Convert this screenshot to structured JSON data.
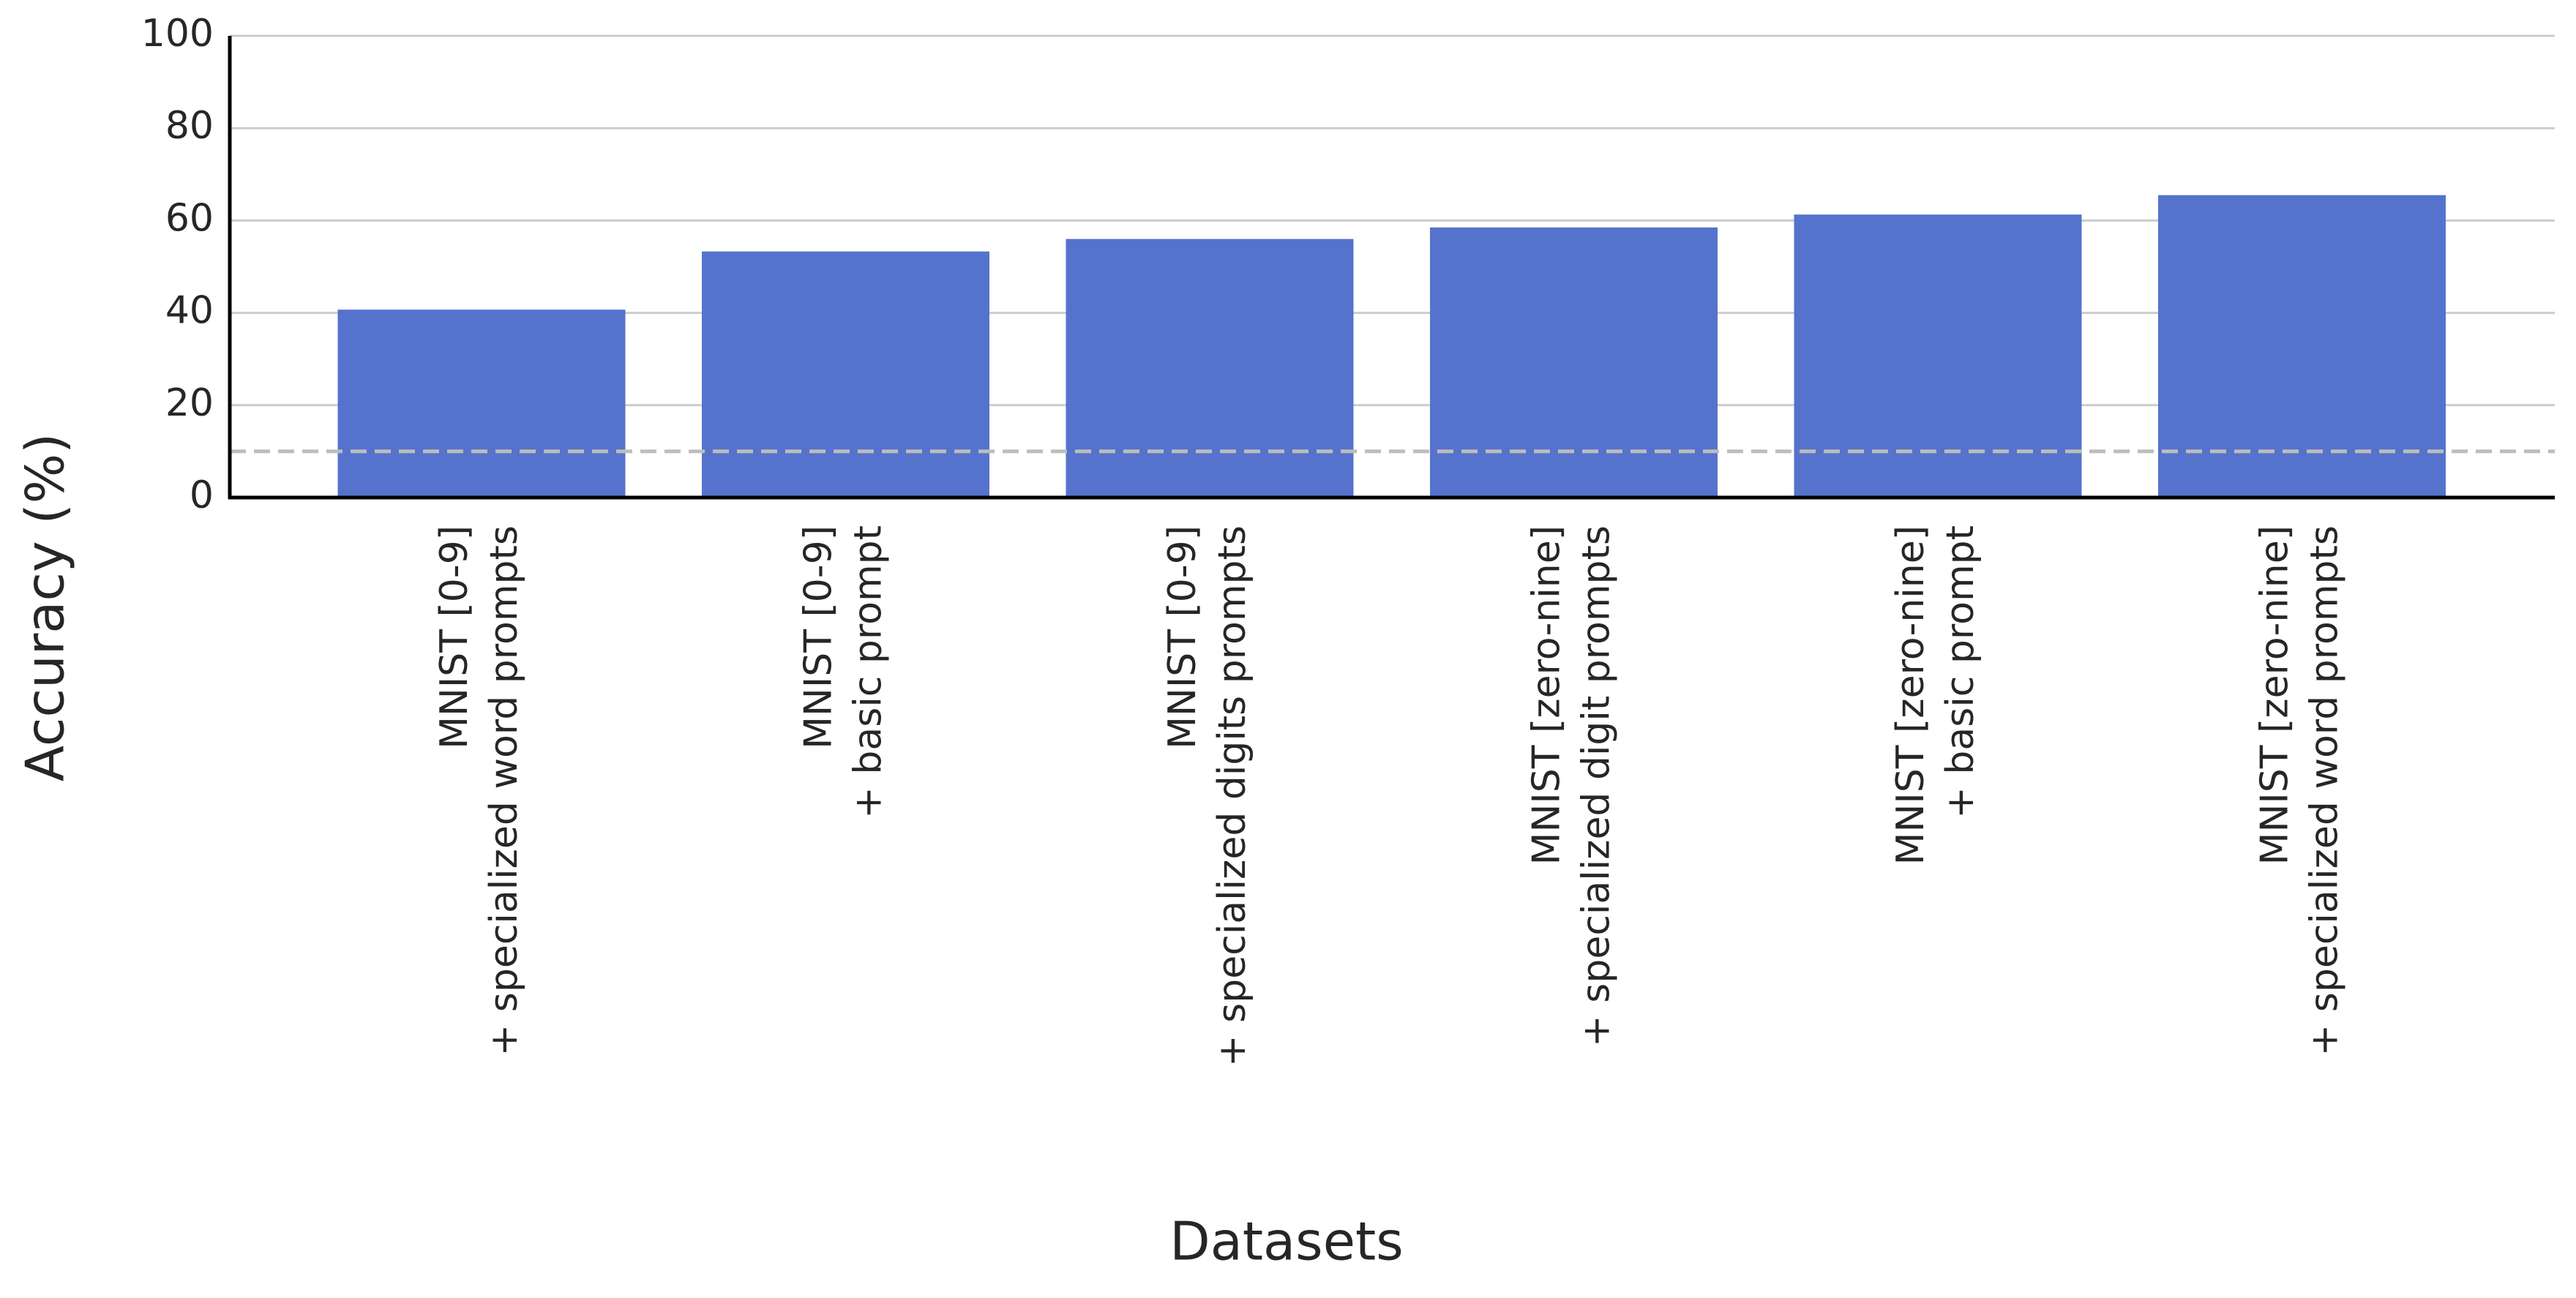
{
  "chart_data": {
    "type": "bar",
    "categories": [
      [
        "MNIST [0-9]",
        "+ specialized word prompts"
      ],
      [
        "MNIST [0-9]",
        "+ basic prompt"
      ],
      [
        "MNIST [0-9]",
        "+ specialized digits prompts"
      ],
      [
        "MNIST [zero-nine]",
        "+ specialized digit prompts"
      ],
      [
        "MNIST [zero-nine]",
        "+ basic prompt"
      ],
      [
        "MNIST [zero-nine]",
        "+ specialized word prompts"
      ]
    ],
    "values": [
      40.7,
      53.3,
      56.0,
      58.5,
      61.3,
      65.5
    ],
    "color": "#5573cc",
    "ylim": [
      0,
      100
    ],
    "yticks": [
      0,
      20,
      40,
      60,
      80,
      100
    ],
    "grid": true,
    "reference_line": 10,
    "x_label": "Datasets",
    "y_label": "Accuracy (%)"
  }
}
